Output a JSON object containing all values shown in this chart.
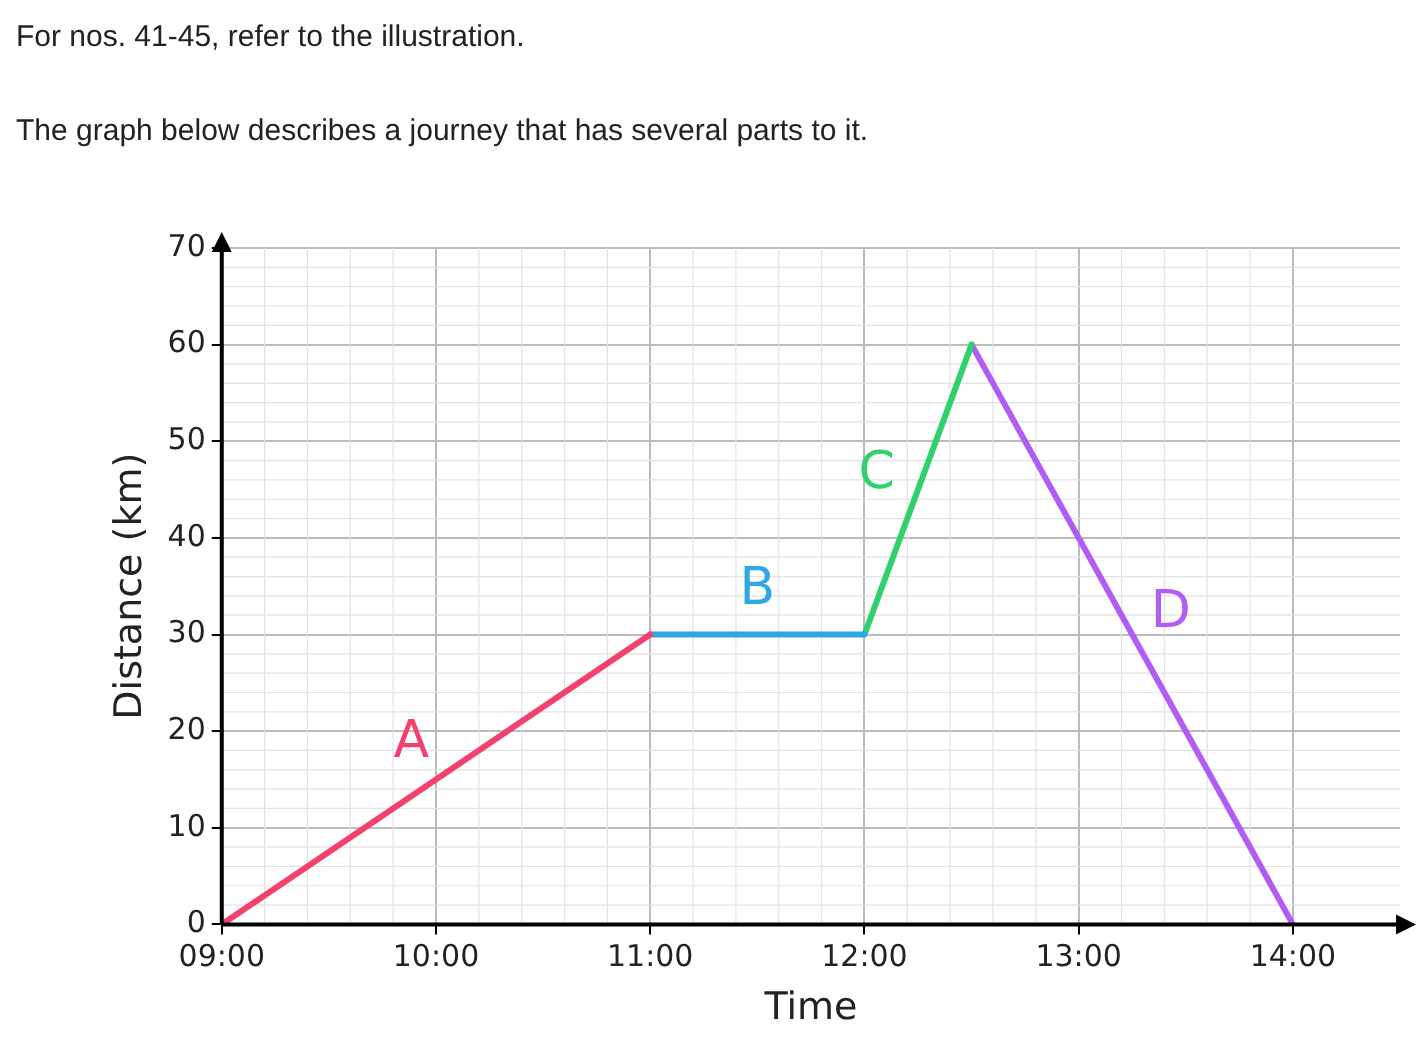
{
  "chart_data": {
    "type": "line",
    "title": "For nos. 41-45, refer to the illustration.",
    "subtitle": "The graph below describes a journey that has several parts to it.",
    "xlabel": "Time",
    "ylabel": "Distance (km)",
    "xlim": [
      9,
      14.5
    ],
    "xticks": [
      {
        "value": 9,
        "label": "09:00"
      },
      {
        "value": 10,
        "label": "10:00"
      },
      {
        "value": 11,
        "label": "11:00"
      },
      {
        "value": 12,
        "label": "12:00"
      },
      {
        "value": 13,
        "label": "13:00"
      },
      {
        "value": 14,
        "label": "14:00"
      }
    ],
    "ylim": [
      0,
      70
    ],
    "yticks": [
      0,
      10,
      20,
      30,
      40,
      50,
      60,
      70
    ],
    "grid": true,
    "legend": false,
    "marker": "none",
    "line_style": "solid",
    "series": [
      {
        "name": "A",
        "color": "#f4406c",
        "x": [
          9,
          11
        ],
        "values": [
          0,
          30
        ]
      },
      {
        "name": "B",
        "color": "#2fa6e6",
        "x": [
          11,
          12
        ],
        "values": [
          30,
          30
        ]
      },
      {
        "name": "C",
        "color": "#2fd16c",
        "x": [
          12,
          12.5
        ],
        "values": [
          30,
          60
        ]
      },
      {
        "name": "D",
        "color": "#b05cf5",
        "x": [
          12.5,
          14
        ],
        "values": [
          60,
          0
        ]
      }
    ]
  }
}
